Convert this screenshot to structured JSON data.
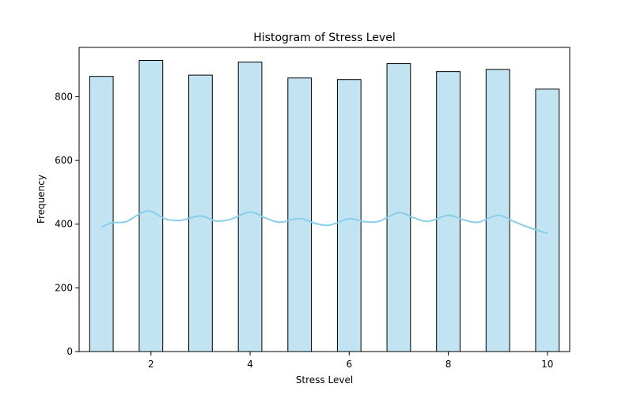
{
  "chart_data": {
    "type": "bar",
    "title": "Histogram of Stress Level",
    "xlabel": "Stress Level",
    "ylabel": "Frequency",
    "xlim": [
      0.55,
      10.45
    ],
    "ylim": [
      0,
      955
    ],
    "x_ticks": [
      2,
      4,
      6,
      8,
      10
    ],
    "y_ticks": [
      0,
      200,
      400,
      600,
      800
    ],
    "bin_width": 0.475,
    "bars": [
      {
        "x": 1,
        "value": 864
      },
      {
        "x": 2,
        "value": 914
      },
      {
        "x": 3,
        "value": 868
      },
      {
        "x": 4,
        "value": 909
      },
      {
        "x": 5,
        "value": 859
      },
      {
        "x": 6,
        "value": 854
      },
      {
        "x": 7,
        "value": 904
      },
      {
        "x": 8,
        "value": 879
      },
      {
        "x": 9,
        "value": 886
      },
      {
        "x": 10,
        "value": 824
      }
    ],
    "kde": {
      "name": "",
      "color": "#87ceeb",
      "x": [
        1.0,
        1.2,
        1.5,
        1.8,
        2.0,
        2.3,
        2.6,
        3.0,
        3.3,
        3.6,
        4.0,
        4.3,
        4.6,
        5.0,
        5.3,
        5.6,
        6.0,
        6.3,
        6.6,
        7.0,
        7.3,
        7.6,
        8.0,
        8.3,
        8.6,
        9.0,
        9.3,
        9.6,
        10.0
      ],
      "y": [
        390,
        404,
        408,
        435,
        440,
        416,
        412,
        426,
        410,
        415,
        438,
        420,
        406,
        418,
        403,
        397,
        417,
        408,
        409,
        436,
        420,
        409,
        428,
        414,
        406,
        428,
        410,
        391,
        371
      ]
    },
    "colors": {
      "bar_fill": "#c2e4f2",
      "bar_edge": "#000000",
      "kde_line": "#87ceeb"
    },
    "grid": false
  }
}
